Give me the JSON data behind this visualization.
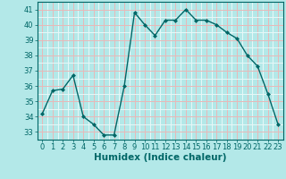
{
  "x": [
    0,
    1,
    2,
    3,
    4,
    5,
    6,
    7,
    8,
    9,
    10,
    11,
    12,
    13,
    14,
    15,
    16,
    17,
    18,
    19,
    20,
    21,
    22,
    23
  ],
  "y": [
    34.2,
    35.7,
    35.8,
    36.7,
    34.0,
    33.5,
    32.8,
    32.8,
    36.0,
    40.8,
    40.0,
    39.3,
    40.3,
    40.3,
    41.0,
    40.3,
    40.3,
    40.0,
    39.5,
    39.1,
    38.0,
    37.3,
    35.5,
    33.5
  ],
  "line_color": "#006666",
  "marker": "D",
  "marker_size": 2.0,
  "bg_color": "#b3e8e8",
  "grid_white_color": "#e8f8f8",
  "grid_pink_color": "#e8b8b8",
  "xlabel": "Humidex (Indice chaleur)",
  "xlim": [
    -0.5,
    23.5
  ],
  "ylim": [
    32.75,
    41.5
  ],
  "yticks": [
    33,
    34,
    35,
    36,
    37,
    38,
    39,
    40,
    41
  ],
  "xticks": [
    0,
    1,
    2,
    3,
    4,
    5,
    6,
    7,
    8,
    9,
    10,
    11,
    12,
    13,
    14,
    15,
    16,
    17,
    18,
    19,
    20,
    21,
    22,
    23
  ],
  "tick_color": "#006666",
  "label_fontsize": 7.5,
  "tick_fontsize": 6.0,
  "linewidth": 1.0
}
